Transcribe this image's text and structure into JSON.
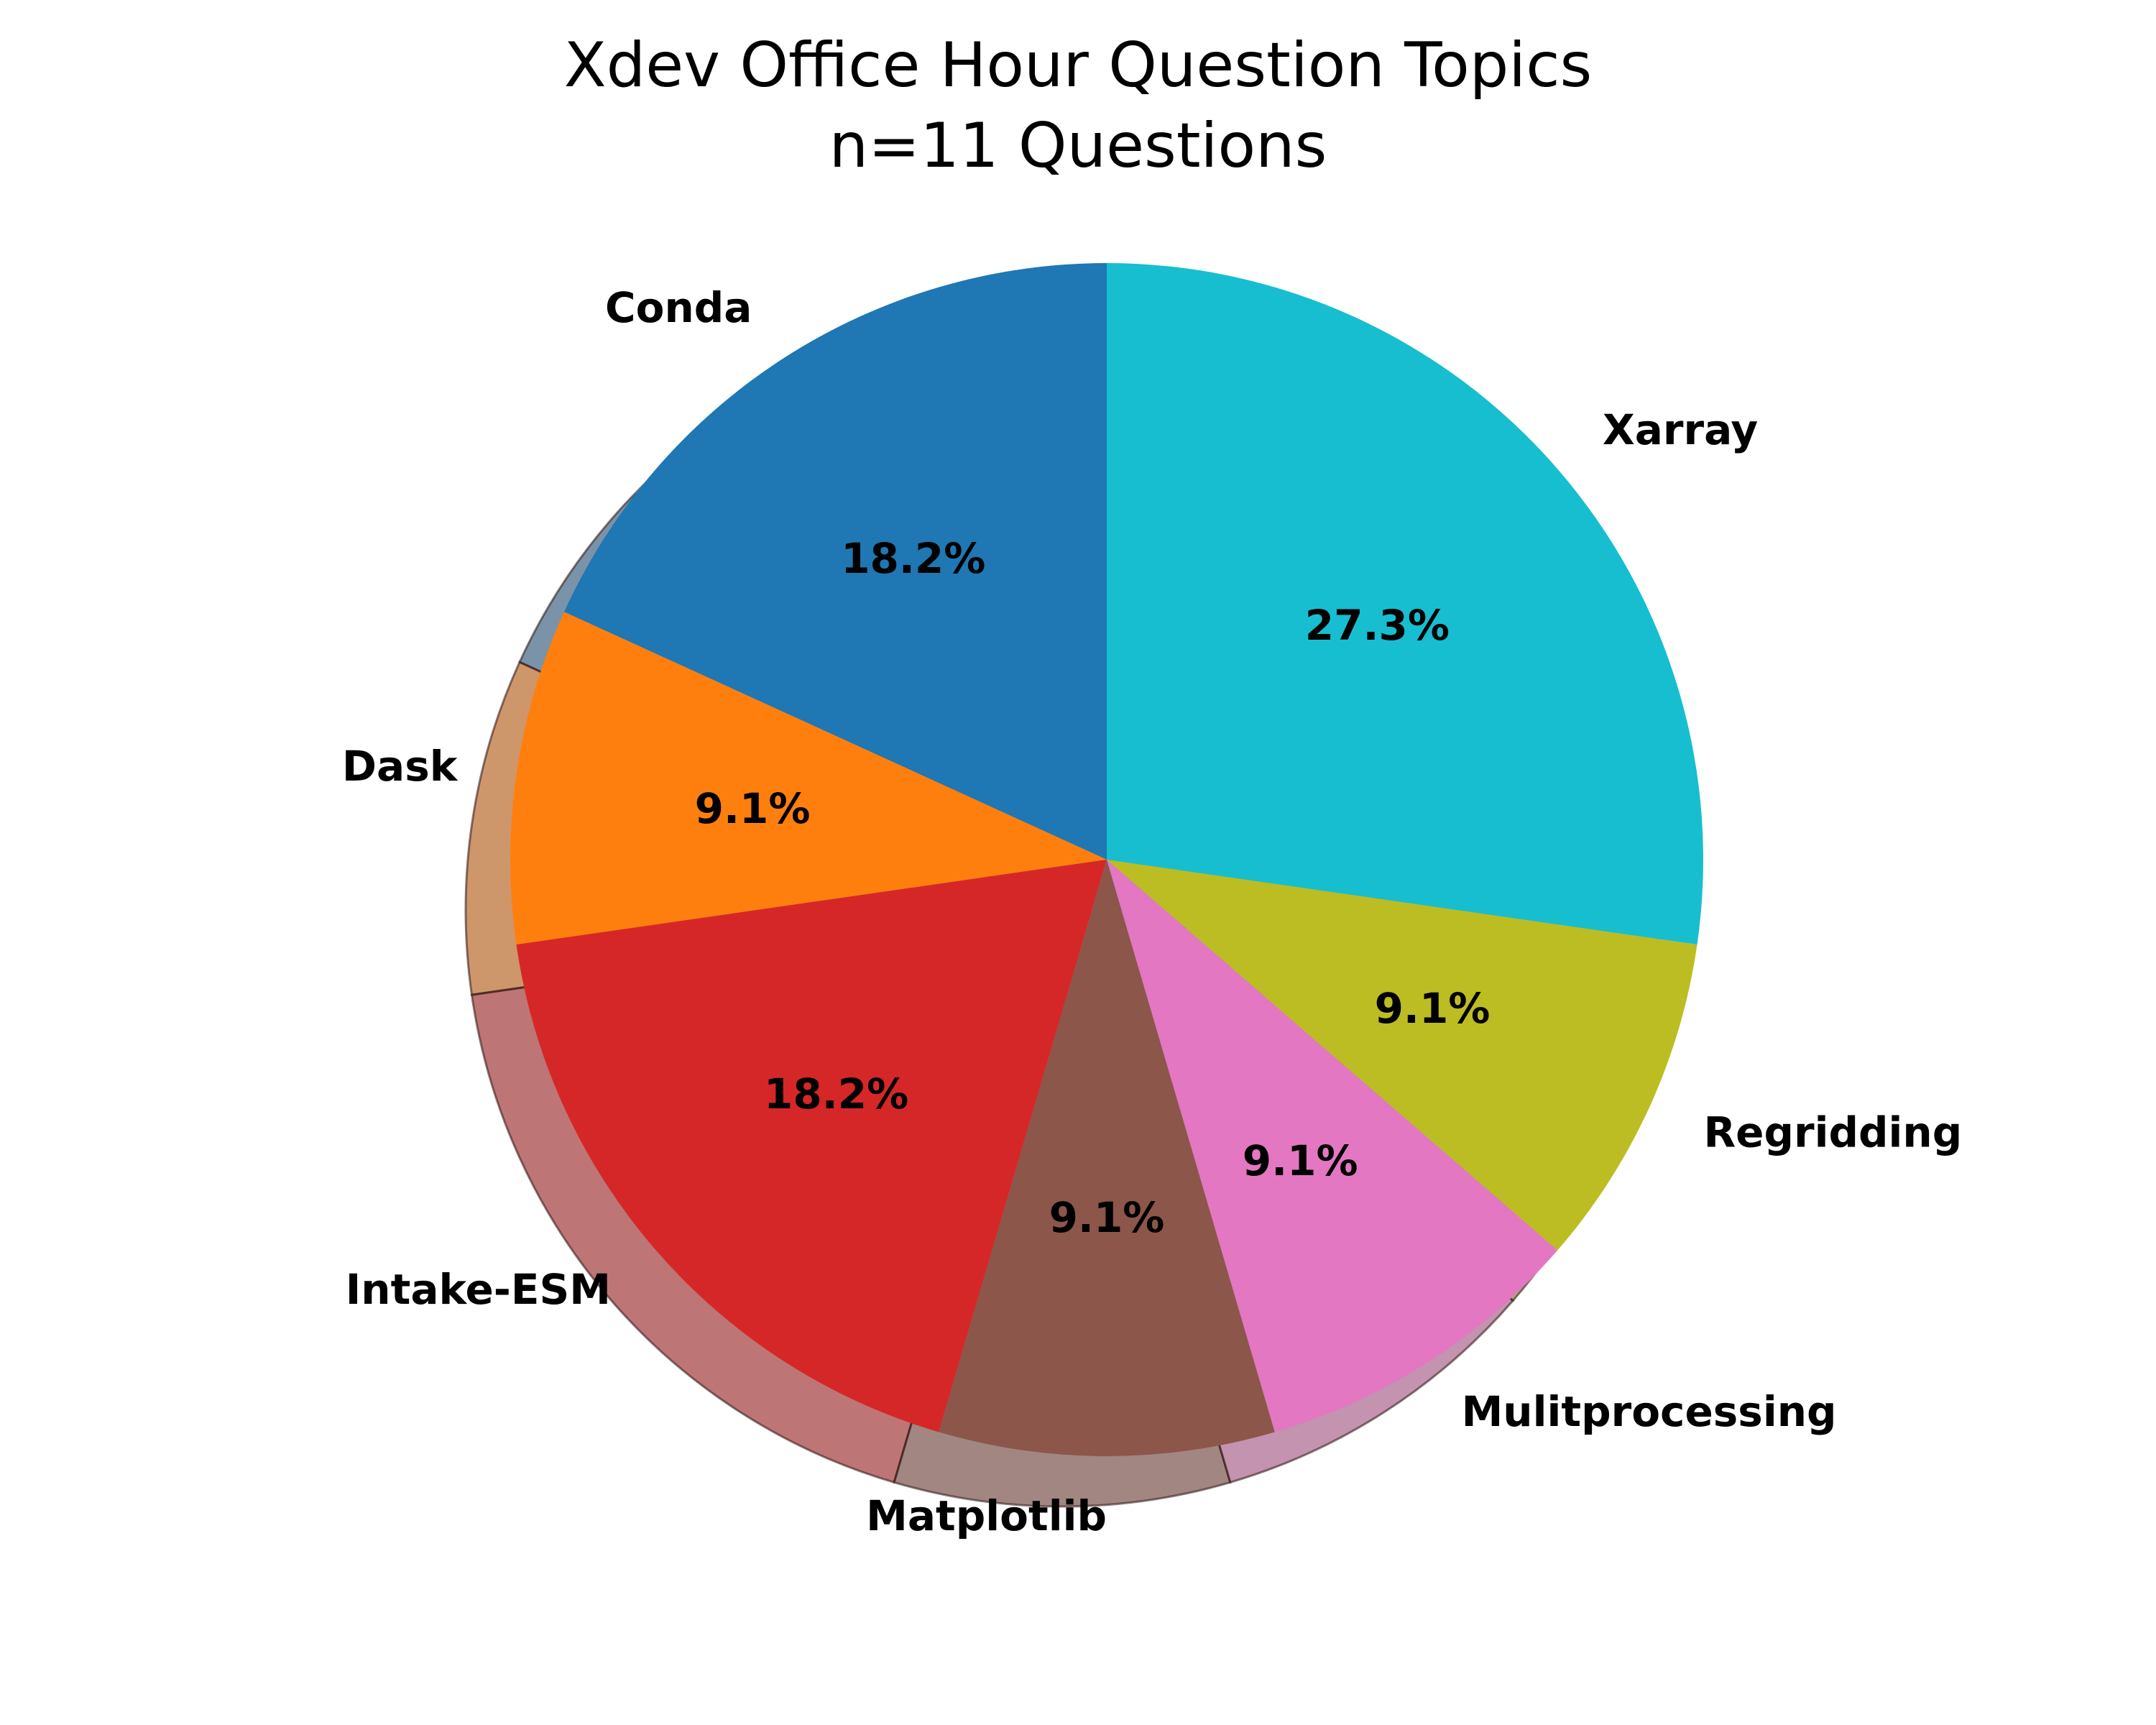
{
  "chart_data": {
    "type": "pie",
    "title": "Xdev Office Hour Question Topics",
    "subtitle": "n=11 Questions",
    "categories": [
      "Conda",
      "Dask",
      "Intake-ESM",
      "Matplotlib",
      "Mulitprocessing",
      "Regridding",
      "Xarray"
    ],
    "values": [
      2,
      1,
      2,
      1,
      1,
      1,
      3
    ],
    "percent_labels": [
      "18.2%",
      "9.1%",
      "18.2%",
      "9.1%",
      "9.1%",
      "9.1%",
      "27.3%"
    ],
    "colors": [
      "#1f77b4",
      "#ff7f0e",
      "#d62728",
      "#8c564b",
      "#e377c2",
      "#bcbd22",
      "#17becf"
    ],
    "start_angle_deg": 90,
    "direction": "counterclockwise",
    "shadow": true,
    "legend": "none"
  }
}
